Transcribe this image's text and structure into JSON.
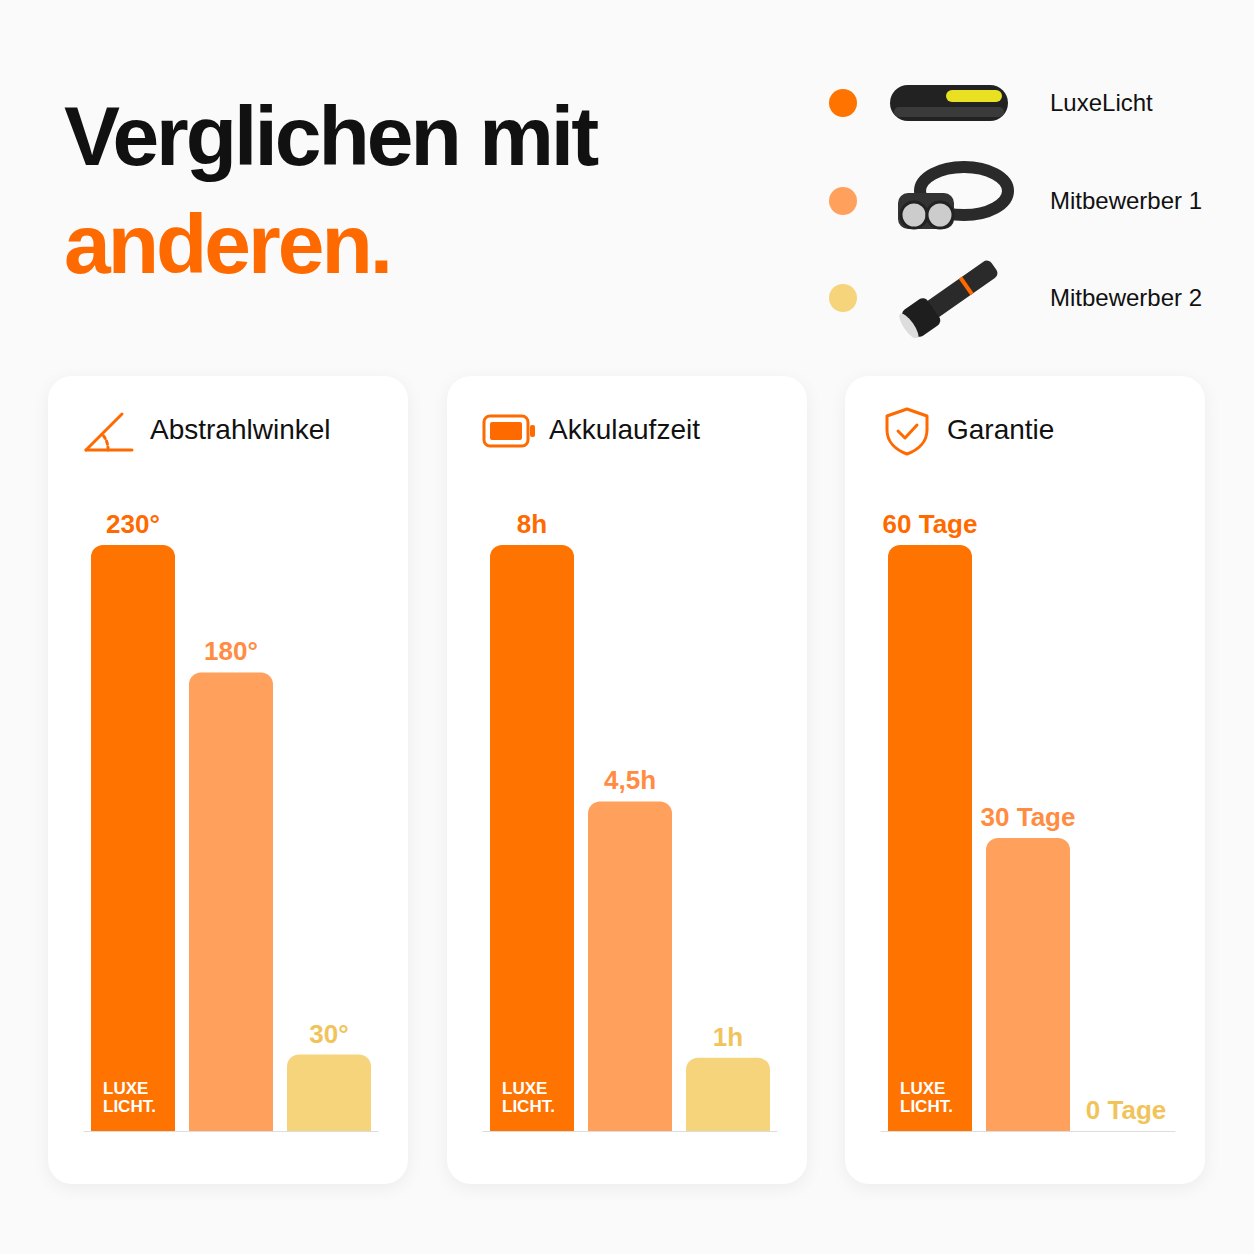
{
  "title": [
    "Verglichen mit",
    "anderen."
  ],
  "logo": [
    "LUXE",
    "LICHT."
  ],
  "chart_data": [
    {
      "type": "bar",
      "title": "Abstrahlwinkel",
      "categories": [
        "LuxeLicht",
        "Mitbewerber 1",
        "Mitbewerber 2"
      ],
      "values": [
        230,
        180,
        30
      ],
      "value_labels": [
        "230°",
        "180°",
        "30°"
      ],
      "colors": [
        "#ff7300",
        "#ffa05c",
        "#f5d47c"
      ],
      "ylim": [
        0,
        230
      ],
      "tick_labels": false,
      "grid": false,
      "data_labels": true,
      "legend": "top-right"
    },
    {
      "type": "bar",
      "title": "Akkulaufzeit",
      "categories": [
        "LuxeLicht",
        "Mitbewerber 1",
        "Mitbewerber 2"
      ],
      "values": [
        8,
        4.5,
        1
      ],
      "value_labels": [
        "8h",
        "4,5h",
        "1h"
      ],
      "colors": [
        "#ff7300",
        "#ffa05c",
        "#f5d47c"
      ],
      "ylim": [
        0,
        8
      ],
      "tick_labels": false,
      "grid": false,
      "data_labels": true,
      "legend": "top-right"
    },
    {
      "type": "bar",
      "title": "Garantie",
      "categories": [
        "LuxeLicht",
        "Mitbewerber 1",
        "Mitbewerber 2"
      ],
      "values": [
        60,
        30,
        0
      ],
      "value_labels": [
        "60 Tage",
        "30 Tage",
        "0 Tage"
      ],
      "colors": [
        "#ff7300",
        "#ffa05c",
        "#f5d47c"
      ],
      "ylim": [
        0,
        60
      ],
      "tick_labels": false,
      "grid": false,
      "data_labels": true,
      "legend": "top-right"
    }
  ]
}
